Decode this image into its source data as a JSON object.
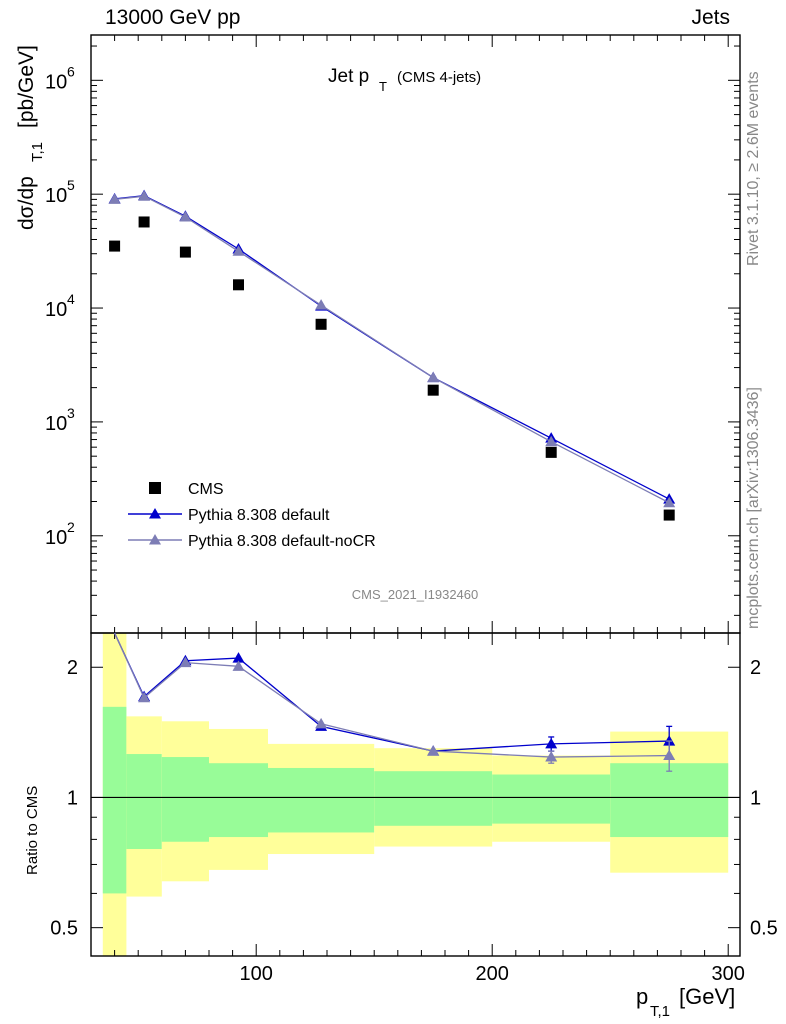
{
  "header": {
    "left": "13000 GeV pp",
    "right": "Jets"
  },
  "side_texts": {
    "rivet": "Rivet 3.1.10, ≥ 2.6M events",
    "mcplots": "mcplots.cern.ch [arXiv:1306.3436]"
  },
  "colors": {
    "data": "#000000",
    "default": "#0000cc",
    "noCR": "#7d7db5",
    "band_inner": "#98fc98",
    "band_outer": "#ffff9a"
  },
  "chart_data": [
    {
      "type": "scatter",
      "title": "Jet p_T (CMS 4-jets)",
      "title_main": "Jet p",
      "title_sub": "T",
      "title_extra": "(CMS 4-jets)",
      "watermark": "CMS_2021_I1932460",
      "ylabel_main": "dσ/dp",
      "ylabel_sub": "T,1",
      "ylabel_unit": "[pb/GeV]",
      "yscale": "log",
      "ylim": [
        14,
        2500000
      ],
      "xlim": [
        30,
        305
      ],
      "ytick_labels": [
        "10",
        "10",
        "10",
        "10",
        "10"
      ],
      "ytick_exponents": [
        "2",
        "3",
        "4",
        "5",
        "6"
      ],
      "x": [
        40,
        52.5,
        70,
        92.5,
        127.5,
        175,
        225,
        275
      ],
      "series": [
        {
          "name": "CMS",
          "marker": "square",
          "values": [
            35000,
            57000,
            31000,
            16000,
            7200,
            1900,
            540,
            152
          ]
        },
        {
          "name": "Pythia 8.308 default",
          "marker": "triangle",
          "values": [
            91000,
            97000,
            64000,
            33000,
            10400,
            2450,
            720,
            210
          ],
          "yerr": [
            0,
            0,
            0,
            0,
            0,
            0,
            0,
            14
          ]
        },
        {
          "name": "Pythia 8.308 default-noCR",
          "marker": "triangle",
          "values": [
            90000,
            96000,
            63000,
            31500,
            10600,
            2450,
            670,
            195
          ]
        }
      ],
      "legend": {
        "placement": "bottom-left"
      }
    },
    {
      "type": "line",
      "ylabel": "Ratio to CMS",
      "xlabel_main": "p",
      "xlabel_sub": "T,1",
      "xlabel_unit": "[GeV]",
      "ylim": [
        0.43,
        2.4
      ],
      "yscale": "log",
      "ytick_labels": [
        "0.5",
        "1",
        "2"
      ],
      "ytick_values": [
        0.5,
        1,
        2
      ],
      "xtick_labels": [
        "100",
        "200",
        "300"
      ],
      "xtick_values": [
        100,
        200,
        300
      ],
      "x": [
        40,
        52.5,
        70,
        92.5,
        127.5,
        175,
        225,
        275
      ],
      "series": [
        {
          "name": "Pythia 8.308 default",
          "values": [
            2.6,
            1.71,
            2.07,
            2.1,
            1.46,
            1.28,
            1.33,
            1.35
          ],
          "yerr": [
            0,
            0,
            0,
            0,
            0,
            0,
            0.05,
            0.11
          ]
        },
        {
          "name": "Pythia 8.308 default-noCR",
          "values": [
            2.55,
            1.7,
            2.05,
            2.01,
            1.48,
            1.28,
            1.24,
            1.25
          ],
          "yerr": [
            0,
            0,
            0,
            0,
            0,
            0,
            0.04,
            0.1
          ]
        }
      ],
      "bands": [
        {
          "xlow": 35,
          "xhigh": 45,
          "inner": [
            0.6,
            1.62
          ],
          "outer": [
            0.4,
            2.45
          ]
        },
        {
          "xlow": 45,
          "xhigh": 60,
          "inner": [
            0.76,
            1.26
          ],
          "outer": [
            0.59,
            1.54
          ]
        },
        {
          "xlow": 60,
          "xhigh": 80,
          "inner": [
            0.79,
            1.24
          ],
          "outer": [
            0.64,
            1.5
          ]
        },
        {
          "xlow": 80,
          "xhigh": 105,
          "inner": [
            0.81,
            1.2
          ],
          "outer": [
            0.68,
            1.44
          ]
        },
        {
          "xlow": 105,
          "xhigh": 150,
          "inner": [
            0.83,
            1.17
          ],
          "outer": [
            0.74,
            1.33
          ]
        },
        {
          "xlow": 150,
          "xhigh": 200,
          "inner": [
            0.86,
            1.15
          ],
          "outer": [
            0.77,
            1.3
          ]
        },
        {
          "xlow": 200,
          "xhigh": 250,
          "inner": [
            0.87,
            1.13
          ],
          "outer": [
            0.79,
            1.25
          ]
        },
        {
          "xlow": 250,
          "xhigh": 300,
          "inner": [
            0.81,
            1.2
          ],
          "outer": [
            0.67,
            1.42
          ]
        }
      ],
      "reference_line": 1
    }
  ]
}
